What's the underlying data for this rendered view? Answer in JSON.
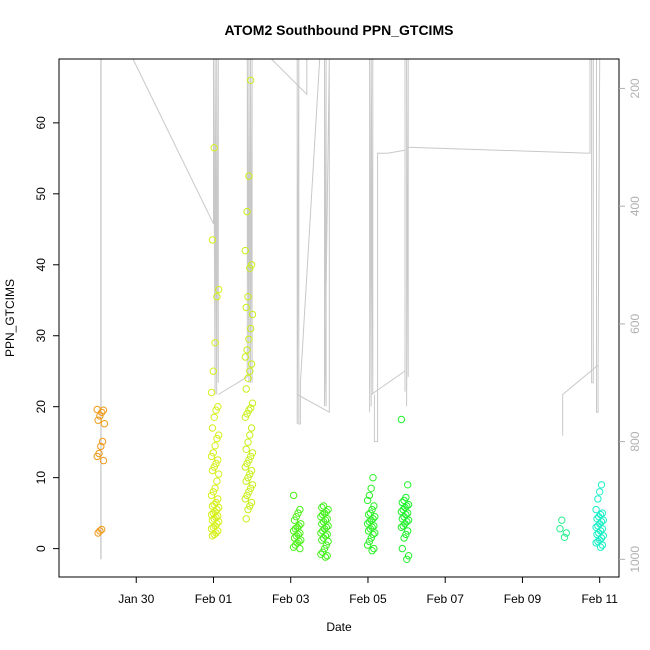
{
  "chart_data": {
    "type": "scatter",
    "title": "ATOM2 Southbound PPN_GTCIMS",
    "xlabel": "Date",
    "ylabel": "PPN_GTCIMS",
    "x_range": [
      "2018-01-28T00:00",
      "2018-02-11T12:00"
    ],
    "ylim": [
      -4,
      69
    ],
    "y_ticks": [
      0,
      10,
      20,
      30,
      40,
      50,
      60
    ],
    "x_ticks": [
      {
        "date": "2018-01-30",
        "label": "Jan 30"
      },
      {
        "date": "2018-02-01",
        "label": "Feb 01"
      },
      {
        "date": "2018-02-03",
        "label": "Feb 03"
      },
      {
        "date": "2018-02-05",
        "label": "Feb 05"
      },
      {
        "date": "2018-02-07",
        "label": "Feb 07"
      },
      {
        "date": "2018-02-09",
        "label": "Feb 09"
      },
      {
        "date": "2018-02-11",
        "label": "Feb 11"
      }
    ],
    "right_axis": {
      "reversed": true,
      "range": [
        150,
        1030
      ],
      "ticks": [
        200,
        400,
        600,
        800,
        1000
      ],
      "color": "#b0b0b0"
    },
    "grid": false,
    "legend": "none",
    "point_style": "open-circle",
    "point_groups": [
      {
        "date": "2018-01-29T02:00",
        "color": "#f09a1a",
        "values": [
          19.6,
          19.5,
          19.2,
          18.7,
          18.1,
          17.6,
          15.1,
          14.4,
          13.4,
          13.0,
          12.4,
          2.7,
          2.5,
          2.2
        ]
      },
      {
        "date": "2018-02-01T01:00",
        "color": "#d6f01a",
        "values": [
          56.5,
          43.5,
          36.5,
          35.5,
          29.0,
          25.0,
          22.0,
          20.0,
          19.5,
          18.5,
          17.0,
          16.0,
          15.5,
          14.5,
          13.5,
          13.0,
          12.5,
          12.0,
          11.5,
          11.0,
          10.5,
          9.5,
          8.5,
          8.0,
          7.5,
          7.0,
          6.5,
          6.2,
          6.0,
          5.8,
          5.5,
          5.2,
          5.0,
          4.8,
          4.6,
          4.4,
          4.2,
          4.0,
          3.8,
          3.5,
          3.2,
          3.0,
          2.8,
          2.5,
          2.2,
          2.0,
          1.8
        ]
      },
      {
        "date": "2018-02-01T22:00",
        "color": "#c8f01a",
        "values": [
          66.0,
          52.5,
          47.5,
          42.0,
          40.0,
          39.5,
          35.5,
          34.0,
          33.0,
          31.0,
          29.5,
          28.0,
          27.0,
          26.0,
          25.0,
          24.0,
          22.5,
          20.5,
          19.8,
          19.5,
          19.0,
          18.5,
          17.0,
          16.0,
          15.0,
          14.0,
          13.5,
          13.0,
          12.5,
          12.0,
          11.5,
          11.0,
          10.5,
          10.0,
          9.5,
          9.0,
          8.5,
          8.0,
          7.5,
          7.0,
          6.5,
          6.0,
          5.5,
          4.2
        ]
      },
      {
        "date": "2018-02-03T04:00",
        "color": "#4ef01a",
        "values": [
          7.5,
          5.5,
          5.0,
          4.5,
          4.0,
          3.5,
          3.2,
          3.0,
          2.8,
          2.5,
          2.2,
          2.0,
          1.8,
          1.5,
          1.2,
          1.0,
          0.8,
          0.5,
          0.2,
          0.0
        ]
      },
      {
        "date": "2018-02-03T21:00",
        "color": "#46f020",
        "values": [
          6.0,
          5.8,
          5.5,
          5.2,
          5.0,
          4.8,
          4.5,
          4.2,
          4.0,
          3.8,
          3.5,
          3.2,
          3.0,
          2.8,
          2.5,
          2.2,
          2.0,
          1.8,
          1.5,
          1.2,
          1.0,
          0.5,
          0.0,
          -0.5,
          -0.8,
          -1.0,
          -1.2
        ]
      },
      {
        "date": "2018-02-05T02:00",
        "color": "#2ef02a",
        "values": [
          10.0,
          8.5,
          7.5,
          6.8,
          6.0,
          5.5,
          5.0,
          4.8,
          4.5,
          4.2,
          4.0,
          3.8,
          3.5,
          3.2,
          3.0,
          2.8,
          2.5,
          2.2,
          2.0,
          1.5,
          1.0,
          0.5,
          0.0,
          -0.3
        ]
      },
      {
        "date": "2018-02-05T23:00",
        "color": "#22f02e",
        "values": [
          18.2,
          9.0,
          7.2,
          6.8,
          6.5,
          6.2,
          6.0,
          5.8,
          5.5,
          5.2,
          5.0,
          4.8,
          4.5,
          4.2,
          4.0,
          3.8,
          3.5,
          3.2,
          3.0,
          2.5,
          2.0,
          1.5,
          0.0,
          -1.0,
          -1.5
        ]
      },
      {
        "date": "2018-02-10T01:00",
        "color": "#28f090",
        "values": [
          4.0,
          2.8,
          2.2,
          1.6
        ]
      },
      {
        "date": "2018-02-11T00:00",
        "color": "#1af0c8",
        "values": [
          9.0,
          8.0,
          7.0,
          5.5,
          5.0,
          4.8,
          4.5,
          4.2,
          4.0,
          3.8,
          3.5,
          3.2,
          3.0,
          2.8,
          2.5,
          2.2,
          2.0,
          1.8,
          1.5,
          1.2,
          1.0,
          0.8,
          0.5,
          0.2
        ]
      }
    ],
    "altitude_trace": {
      "color": "#c8c8c8",
      "segments": [
        [
          [
            "2018-01-29T02:00",
            1000
          ],
          [
            "2018-01-29T02:00",
            150
          ],
          [
            "2018-01-29T02:10",
            1000
          ],
          [
            "2018-01-29T02:10",
            150
          ],
          [
            "2018-01-29T02:20",
            150
          ]
        ],
        [
          [
            "2018-01-29T22:00",
            150
          ],
          [
            "2018-02-01T00:00",
            430
          ],
          [
            "2018-02-01T00:00",
            150
          ],
          [
            "2018-02-01T01:00",
            720
          ],
          [
            "2018-02-01T01:00",
            150
          ],
          [
            "2018-02-01T02:00",
            720
          ],
          [
            "2018-02-01T02:00",
            150
          ],
          [
            "2018-02-01T03:00",
            700
          ],
          [
            "2018-02-01T03:00",
            150
          ]
        ],
        [
          [
            "2018-02-01T03:00",
            720
          ],
          [
            "2018-02-01T21:00",
            690
          ],
          [
            "2018-02-01T21:00",
            150
          ],
          [
            "2018-02-01T22:00",
            700
          ],
          [
            "2018-02-01T22:00",
            150
          ],
          [
            "2018-02-01T23:00",
            700
          ],
          [
            "2018-02-01T23:00",
            150
          ],
          [
            "2018-02-02T00:00",
            700
          ],
          [
            "2018-02-02T00:00",
            150
          ]
        ],
        [
          [
            "2018-02-02T00:00",
            150
          ],
          [
            "2018-02-02T12:00",
            150
          ],
          [
            "2018-02-03T10:00",
            210
          ],
          [
            "2018-02-03T10:00",
            150
          ]
        ],
        [
          [
            "2018-02-03T04:00",
            150
          ],
          [
            "2018-02-03T04:00",
            770
          ],
          [
            "2018-02-03T05:00",
            150
          ],
          [
            "2018-02-03T05:00",
            770
          ],
          [
            "2018-02-03T06:00",
            770
          ],
          [
            "2018-02-03T06:00",
            700
          ],
          [
            "2018-02-03T18:00",
            150
          ],
          [
            "2018-02-03T21:00",
            150
          ]
        ],
        [
          [
            "2018-02-03T04:00",
            720
          ],
          [
            "2018-02-04T00:00",
            750
          ],
          [
            "2018-02-04T00:00",
            150
          ],
          [
            "2018-02-03T21:00",
            740
          ],
          [
            "2018-02-03T21:00",
            150
          ],
          [
            "2018-02-03T22:00",
            740
          ],
          [
            "2018-02-03T22:00",
            150
          ],
          [
            "2018-02-03T23:00",
            150
          ]
        ],
        [
          [
            "2018-02-05T01:00",
            750
          ],
          [
            "2018-02-05T01:00",
            150
          ],
          [
            "2018-02-05T02:00",
            740
          ],
          [
            "2018-02-05T02:00",
            150
          ],
          [
            "2018-02-05T03:00",
            720
          ],
          [
            "2018-02-05T03:00",
            150
          ],
          [
            "2018-02-05T04:00",
            150
          ]
        ],
        [
          [
            "2018-02-05T04:00",
            720
          ],
          [
            "2018-02-05T04:00",
            800
          ],
          [
            "2018-02-05T06:00",
            800
          ],
          [
            "2018-02-05T06:00",
            310
          ],
          [
            "2018-02-05T12:00",
            310
          ],
          [
            "2018-02-05T23:00",
            305
          ],
          [
            "2018-02-05T23:00",
            715
          ],
          [
            "2018-02-05T23:00",
            150
          ],
          [
            "2018-02-06T00:00",
            150
          ],
          [
            "2018-02-06T00:00",
            740
          ],
          [
            "2018-02-06T01:00",
            150
          ],
          [
            "2018-02-06T01:00",
            690
          ]
        ],
        [
          [
            "2018-02-05T02:00",
            720
          ],
          [
            "2018-02-05T23:00",
            680
          ]
        ],
        [
          [
            "2018-02-06T01:00",
            300
          ],
          [
            "2018-02-10T18:00",
            310
          ],
          [
            "2018-02-10T18:00",
            150
          ],
          [
            "2018-02-10T19:00",
            150
          ],
          [
            "2018-02-10T19:00",
            700
          ],
          [
            "2018-02-10T20:00",
            700
          ],
          [
            "2018-02-10T20:00",
            150
          ],
          [
            "2018-02-10T22:00",
            150
          ],
          [
            "2018-02-10T22:00",
            750
          ],
          [
            "2018-02-10T23:00",
            750
          ],
          [
            "2018-02-10T23:00",
            670
          ],
          [
            "2018-02-11T00:00",
            150
          ]
        ],
        [
          [
            "2018-02-10T01:00",
            790
          ],
          [
            "2018-02-10T01:00",
            720
          ],
          [
            "2018-02-10T23:00",
            670
          ]
        ]
      ]
    }
  }
}
